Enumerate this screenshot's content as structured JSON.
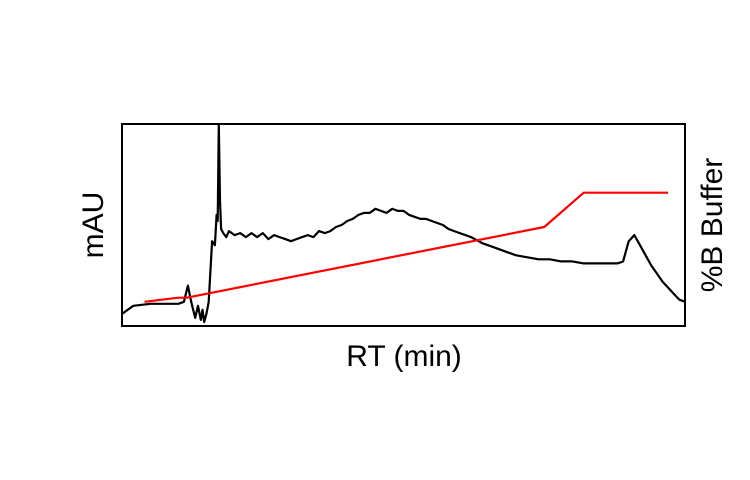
{
  "chart_data": {
    "type": "line",
    "xlabel": "RT (min)",
    "ylabel": "mAU",
    "y2label": "%B Buffer",
    "xlim": [
      0,
      100
    ],
    "ylim": [
      0,
      100
    ],
    "y2lim": [
      0,
      100
    ],
    "grid": false,
    "series": [
      {
        "axis": "left",
        "color": "#000000",
        "x": [
          0,
          2,
          5,
          8,
          10,
          11,
          11.7,
          12.3,
          13,
          13.5,
          14,
          14.3,
          14.6,
          15,
          15.4,
          16,
          16.5,
          16.8,
          17,
          17.2,
          17.4,
          17.6,
          18,
          18.5,
          19,
          20,
          21,
          22,
          23,
          24,
          25,
          26,
          27,
          28,
          29,
          30,
          31,
          32,
          33,
          34,
          35,
          36,
          37,
          38,
          39,
          40,
          41,
          42,
          43,
          44,
          45,
          46,
          47,
          48,
          49,
          50,
          51,
          52,
          53,
          54,
          55,
          56,
          57,
          58,
          59,
          60,
          62,
          64,
          66,
          68,
          70,
          72,
          74,
          76,
          78,
          80,
          82,
          84,
          86,
          88,
          89,
          90,
          91,
          92,
          93,
          94,
          95,
          96,
          97,
          98,
          99,
          100
        ],
        "values": [
          6,
          10,
          11,
          11,
          11,
          12,
          20,
          12,
          4,
          10,
          3,
          8,
          2,
          6,
          12,
          42,
          40,
          55,
          52,
          100,
          62,
          48,
          46,
          44,
          47,
          45,
          46,
          44,
          46,
          44,
          46,
          43,
          45,
          44,
          43,
          42,
          43,
          44,
          45,
          44,
          47,
          46,
          47,
          49,
          50,
          52,
          53,
          55,
          56,
          56,
          58,
          57,
          56,
          58,
          57,
          57,
          55,
          54,
          53,
          53,
          52,
          51,
          50,
          48,
          47,
          46,
          44,
          41,
          39,
          37,
          35,
          34,
          33,
          33,
          32,
          32,
          31,
          31,
          31,
          31,
          32,
          42,
          45,
          40,
          35,
          30,
          26,
          22,
          19,
          16,
          13,
          12
        ]
      },
      {
        "axis": "right",
        "color": "#ff0000",
        "x": [
          4,
          10,
          11.5,
          75,
          82,
          97
        ],
        "values": [
          12,
          14,
          14,
          49,
          66,
          66
        ]
      }
    ]
  }
}
